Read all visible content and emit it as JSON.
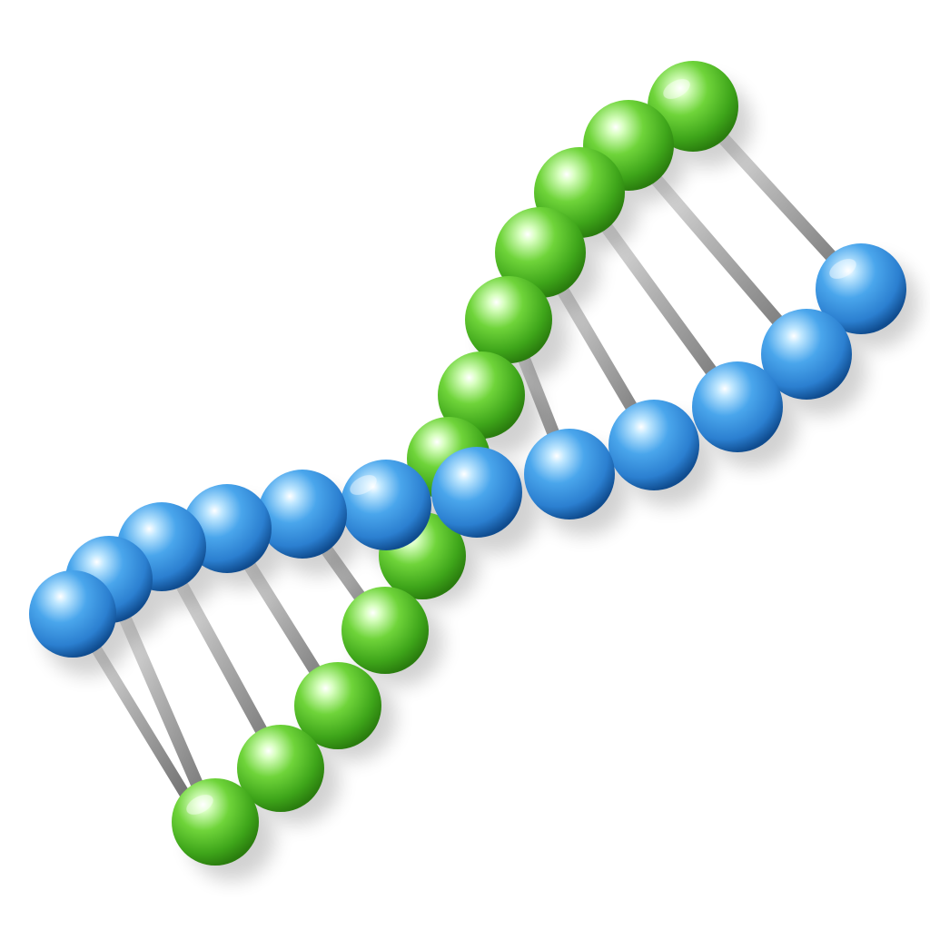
{
  "scene": {
    "subject": "dna-double-helix",
    "colors": {
      "background": "#ffffff",
      "strand_a_base": "#3f91dc",
      "strand_a_highlight": "#bfe7ff",
      "strand_a_shadow": "#0f4c8f",
      "strand_b_base": "#56c12a",
      "strand_b_highlight": "#d8ffc0",
      "strand_b_shadow": "#2a7d0e",
      "rung_light": "#f7f7f7",
      "rung_mid": "#b4b4b4",
      "rung_dark": "#6d6d6d",
      "shadow": "#000000"
    }
  }
}
